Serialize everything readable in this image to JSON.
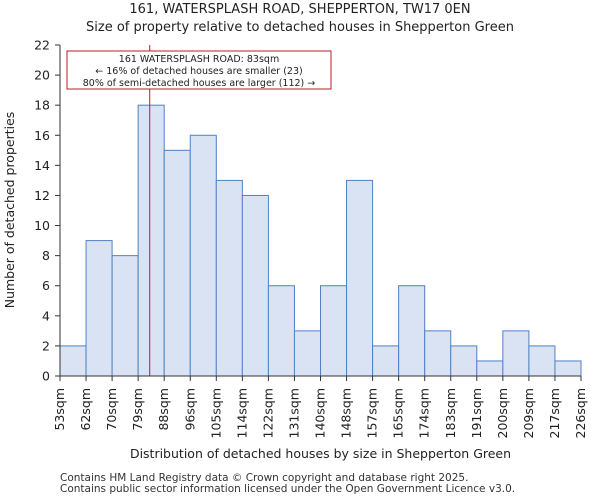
{
  "chart_data": {
    "type": "bar",
    "title": "161, WATERSPLASH ROAD, SHEPPERTON, TW17 0EN",
    "subtitle": "Size of property relative to detached houses in Shepperton Green",
    "xlabel": "Distribution of detached houses by size in Shepperton Green",
    "ylabel": "Number of detached properties",
    "bin_edges": [
      53,
      62,
      70,
      79,
      88,
      96,
      105,
      114,
      122,
      131,
      140,
      148,
      157,
      165,
      174,
      183,
      191,
      200,
      209,
      217,
      226
    ],
    "tick_labels": [
      "53sqm",
      "62sqm",
      "70sqm",
      "79sqm",
      "88sqm",
      "96sqm",
      "105sqm",
      "114sqm",
      "122sqm",
      "131sqm",
      "140sqm",
      "148sqm",
      "157sqm",
      "165sqm",
      "174sqm",
      "183sqm",
      "191sqm",
      "200sqm",
      "209sqm",
      "217sqm",
      "226sqm"
    ],
    "values": [
      2,
      9,
      8,
      18,
      15,
      16,
      13,
      12,
      6,
      3,
      6,
      13,
      2,
      6,
      3,
      2,
      1,
      3,
      2,
      1
    ],
    "ylim": [
      0,
      22
    ],
    "yticks": [
      0,
      2,
      4,
      6,
      8,
      10,
      12,
      14,
      16,
      18,
      20,
      22
    ],
    "bar_fill": "#dae3f3",
    "bar_edge": "#4f81c4",
    "marker": {
      "x": 83,
      "color": "#b22222",
      "lines": [
        "161 WATERSPLASH ROAD: 83sqm",
        "← 16% of detached houses are smaller (23)",
        "80% of semi-detached houses are larger (112) →"
      ]
    }
  },
  "footer": {
    "line1": "Contains HM Land Registry data © Crown copyright and database right 2025.",
    "line2": "Contains public sector information licensed under the Open Government Licence v3.0."
  }
}
